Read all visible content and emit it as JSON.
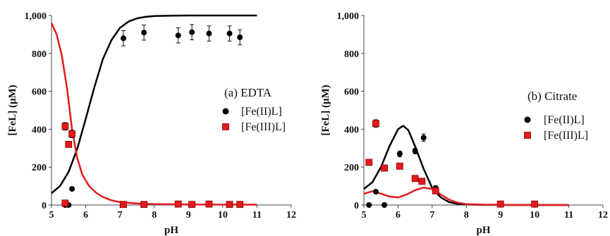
{
  "colors": {
    "fe2": "#000000",
    "fe3": "#e31a1c",
    "fe3_edge": "#8b0000"
  },
  "chart_data": [
    {
      "type": "scatter",
      "annotation": "(a) EDTA",
      "xlabel": "pH",
      "ylabel": "[FeL] (μM)",
      "xlim": [
        5,
        12
      ],
      "ylim": [
        0,
        1000
      ],
      "xticks": [
        "5",
        "6",
        "7",
        "8",
        "9",
        "10",
        "11",
        "12"
      ],
      "yticks": [
        "0",
        "200",
        "400",
        "600",
        "800",
        "1,000"
      ],
      "legend": {
        "position": "right",
        "entries": [
          "[Fe(II)L]",
          "[Fe(III)L]"
        ]
      },
      "series": [
        {
          "name": "[Fe(II)L]",
          "kind": "points",
          "marker": "circle",
          "color": "#000000",
          "x": [
            5.4,
            5.5,
            5.6,
            7.1,
            7.7,
            8.7,
            9.1,
            9.6,
            10.2,
            10.5
          ],
          "y": [
            0,
            0,
            85,
            880,
            910,
            895,
            912,
            905,
            905,
            885
          ],
          "err": [
            0,
            0,
            0,
            40,
            40,
            40,
            40,
            40,
            40,
            40
          ]
        },
        {
          "name": "[Fe(III)L]",
          "kind": "points",
          "marker": "square",
          "color": "#e31a1c",
          "x": [
            5.4,
            5.5,
            5.6,
            5.4,
            7.1,
            7.7,
            8.7,
            9.1,
            9.6,
            10.2,
            10.5
          ],
          "y": [
            415,
            320,
            375,
            10,
            3,
            3,
            5,
            3,
            5,
            3,
            3
          ],
          "err": [
            20,
            15,
            20,
            0,
            0,
            0,
            0,
            0,
            0,
            0,
            0
          ]
        },
        {
          "name": "",
          "kind": "curve",
          "color": "#000000",
          "x": [
            5.0,
            5.25,
            5.5,
            5.75,
            6.0,
            6.25,
            6.5,
            6.75,
            7.0,
            7.25,
            7.5,
            7.75,
            8.0,
            8.5,
            9.0,
            10.0,
            11.0
          ],
          "y": [
            62,
            100,
            175,
            295,
            455,
            620,
            770,
            870,
            935,
            968,
            985,
            993,
            997,
            999,
            1000,
            1000,
            1000
          ]
        },
        {
          "name": "",
          "kind": "curve",
          "color": "#e31a1c",
          "x": [
            5.0,
            5.15,
            5.3,
            5.45,
            5.6,
            5.75,
            5.9,
            6.1,
            6.3,
            6.5,
            6.75,
            7.0,
            7.5,
            8.0,
            9.0,
            10.0,
            11.0
          ],
          "y": [
            960,
            900,
            790,
            620,
            400,
            250,
            160,
            100,
            65,
            42,
            25,
            15,
            8,
            5,
            3,
            2,
            2
          ]
        }
      ]
    },
    {
      "type": "scatter",
      "annotation": "(b) Citrate",
      "xlabel": "pH",
      "ylabel": "[FeL] (μM)",
      "xlim": [
        5,
        12
      ],
      "ylim": [
        0,
        1000
      ],
      "xticks": [
        "5",
        "6",
        "7",
        "8",
        "9",
        "10",
        "11",
        "12"
      ],
      "yticks": [
        "0",
        "200",
        "400",
        "600",
        "800",
        "1,000"
      ],
      "legend": {
        "position": "right",
        "entries": [
          "[Fe(II)L]",
          "[Fe(III)L]"
        ]
      },
      "series": [
        {
          "name": "[Fe(II)L]",
          "kind": "points",
          "marker": "circle",
          "color": "#000000",
          "x": [
            5.15,
            5.35,
            5.6,
            6.05,
            6.5,
            6.75,
            7.1,
            9.0,
            10.0
          ],
          "y": [
            0,
            70,
            0,
            270,
            285,
            355,
            90,
            5,
            5
          ],
          "err": [
            0,
            0,
            0,
            15,
            15,
            20,
            10,
            0,
            0
          ]
        },
        {
          "name": "[Fe(III)L]",
          "kind": "points",
          "marker": "square",
          "color": "#e31a1c",
          "x": [
            5.15,
            5.35,
            5.6,
            6.05,
            6.5,
            6.7,
            7.1,
            9.0,
            10.0
          ],
          "y": [
            225,
            430,
            195,
            205,
            140,
            125,
            75,
            5,
            5
          ],
          "err": [
            0,
            20,
            0,
            0,
            0,
            0,
            0,
            0,
            0
          ]
        },
        {
          "name": "",
          "kind": "curve",
          "color": "#000000",
          "x": [
            5.0,
            5.25,
            5.5,
            5.75,
            6.0,
            6.15,
            6.3,
            6.5,
            6.75,
            7.0,
            7.25,
            7.5,
            7.75,
            8.0,
            8.5,
            9.0,
            10.0,
            11.0
          ],
          "y": [
            85,
            120,
            200,
            310,
            400,
            418,
            395,
            310,
            190,
            90,
            40,
            15,
            6,
            3,
            1,
            0,
            0,
            0
          ]
        },
        {
          "name": "",
          "kind": "curve",
          "color": "#e31a1c",
          "x": [
            5.0,
            5.25,
            5.5,
            5.75,
            6.0,
            6.25,
            6.5,
            6.75,
            7.0,
            7.25,
            7.5,
            7.75,
            8.0,
            8.5,
            9.0,
            10.0,
            11.0
          ],
          "y": [
            60,
            72,
            60,
            45,
            40,
            55,
            78,
            92,
            85,
            55,
            28,
            12,
            5,
            2,
            1,
            0,
            0
          ]
        }
      ]
    }
  ]
}
